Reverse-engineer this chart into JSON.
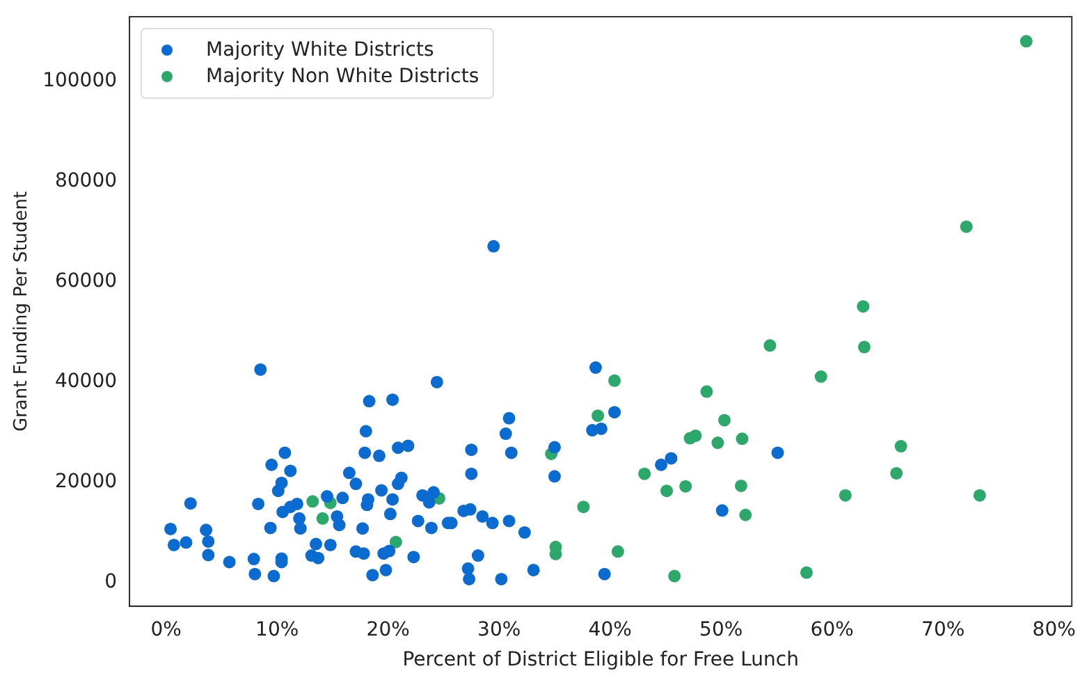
{
  "chart_data": {
    "type": "scatter",
    "xlabel": "Percent of District Eligible for Free Lunch",
    "ylabel": "Grant Funding Per Student",
    "xlim": [
      -3.3,
      81.6
    ],
    "ylim": [
      -4700,
      112900
    ],
    "xticks": [
      {
        "value": 0,
        "label": "0%"
      },
      {
        "value": 10,
        "label": "10%"
      },
      {
        "value": 20,
        "label": "20%"
      },
      {
        "value": 30,
        "label": "30%"
      },
      {
        "value": 40,
        "label": "40%"
      },
      {
        "value": 50,
        "label": "50%"
      },
      {
        "value": 60,
        "label": "60%"
      },
      {
        "value": 70,
        "label": "70%"
      },
      {
        "value": 80,
        "label": "80%"
      }
    ],
    "yticks": [
      0,
      20000,
      40000,
      60000,
      80000,
      100000
    ],
    "grid": false,
    "legend": "top left",
    "marker": "circle",
    "series": [
      {
        "name": "Majority White Districts",
        "color": "#0a6bd1",
        "x": [
          29.5,
          38.7,
          40.4,
          38.4,
          39.2,
          30.9,
          30.6,
          27.5,
          31.1,
          35.0,
          27.5,
          35.0,
          45.5,
          44.6,
          50.1,
          55.1,
          26.8,
          27.4,
          25.7,
          28.5,
          29.4,
          30.9,
          32.3,
          28.1,
          27.2,
          27.3,
          30.2,
          33.1,
          39.5,
          8.5,
          24.4,
          18.3,
          20.4,
          18.0,
          17.9,
          19.2,
          20.9,
          21.8,
          10.7,
          9.5,
          11.2,
          10.4,
          10.1,
          2.2,
          8.3,
          16.5,
          17.1,
          21.2,
          20.9,
          19.4,
          14.5,
          15.9,
          11.8,
          11.2,
          10.5,
          18.2,
          18.1,
          20.4,
          23.1,
          24.1,
          23.7,
          12.0,
          12.1,
          15.4,
          15.6,
          20.2,
          9.4,
          17.7,
          22.7,
          23.9,
          25.4,
          0.4,
          3.6,
          3.8,
          0.7,
          1.8,
          3.8,
          5.7,
          7.9,
          8.0,
          9.7,
          10.4,
          10.4,
          13.5,
          14.8,
          13.1,
          13.7,
          17.1,
          17.8,
          19.6,
          20.1,
          18.6,
          19.8,
          22.3
        ],
        "values": [
          67100,
          42900,
          34000,
          30400,
          30700,
          32800,
          29700,
          26500,
          25900,
          27000,
          21700,
          21200,
          24800,
          23500,
          14400,
          25900,
          14300,
          14600,
          11900,
          13200,
          11900,
          12300,
          10000,
          5400,
          2800,
          700,
          700,
          2500,
          1700,
          42500,
          40000,
          36200,
          36500,
          30200,
          25900,
          25300,
          26900,
          27300,
          25900,
          23500,
          22300,
          19900,
          18300,
          15800,
          15700,
          21900,
          19700,
          20900,
          19700,
          18400,
          17200,
          16900,
          15700,
          15100,
          14100,
          16600,
          15500,
          16600,
          17400,
          18000,
          16000,
          12800,
          10800,
          13200,
          11500,
          13700,
          10900,
          10800,
          12300,
          10900,
          11900,
          10700,
          10500,
          8200,
          7500,
          8000,
          5500,
          4100,
          4700,
          1700,
          1300,
          4800,
          4100,
          7700,
          7500,
          5400,
          4900,
          6200,
          5800,
          5800,
          6300,
          1500,
          2500,
          5100
        ]
      },
      {
        "name": "Majority Non White Districts",
        "color": "#2ca86a",
        "x": [
          77.5,
          72.1,
          62.8,
          54.4,
          62.9,
          59.0,
          51.9,
          66.2,
          65.8,
          51.8,
          52.2,
          61.2,
          73.3,
          57.7,
          40.4,
          48.7,
          38.9,
          50.3,
          47.2,
          47.7,
          49.7,
          34.7,
          43.1,
          45.1,
          46.8,
          37.6,
          35.1,
          35.1,
          40.7,
          45.8,
          13.2,
          14.8,
          24.6,
          14.1,
          20.7
        ],
        "values": [
          108000,
          71000,
          55100,
          47300,
          47000,
          41100,
          28700,
          27200,
          21800,
          19300,
          13500,
          17400,
          17400,
          2000,
          40300,
          38100,
          33300,
          32400,
          28800,
          29300,
          27900,
          25700,
          21700,
          18300,
          19200,
          15100,
          7100,
          5700,
          6200,
          1300,
          16200,
          15900,
          16800,
          12800,
          8100
        ]
      }
    ]
  }
}
